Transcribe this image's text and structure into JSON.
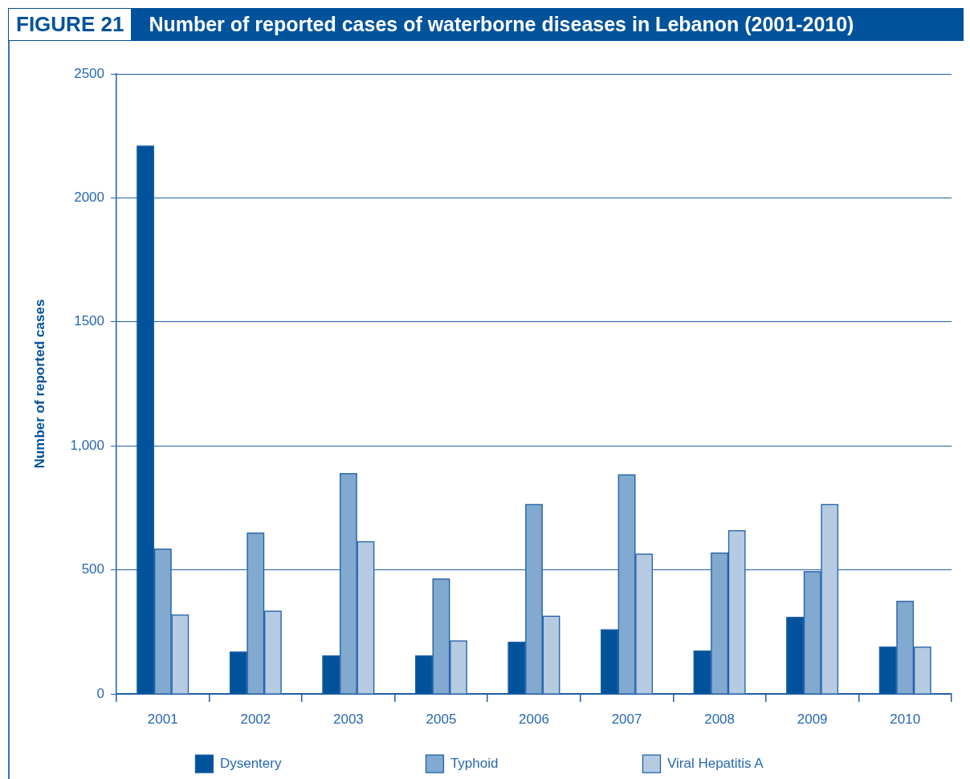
{
  "chart_data": {
    "type": "bar",
    "title": "Number of reported cases of waterborne diseases in Lebanon (2001-2010)",
    "annotations": [
      "FIGURE 21"
    ],
    "ylabel": "Number of reported cases",
    "categories": [
      "2001",
      "2002",
      "2003",
      "2005",
      "2006",
      "2007",
      "2008",
      "2009",
      "2010"
    ],
    "series": [
      {
        "name": "Dysentery",
        "color": "#00529b",
        "values": [
          2210,
          170,
          155,
          155,
          210,
          260,
          175,
          310,
          190
        ]
      },
      {
        "name": "Typhoid",
        "color": "#82a9cf",
        "values": [
          585,
          650,
          890,
          465,
          765,
          885,
          570,
          495,
          375
        ]
      },
      {
        "name": "Viral Hepatitis A",
        "color": "#b4cbe2",
        "values": [
          320,
          335,
          615,
          215,
          315,
          565,
          660,
          765,
          190
        ]
      }
    ],
    "ylim": [
      0,
      2500
    ],
    "yticks": [
      0,
      500,
      {
        "value": 1000,
        "label": "1,000"
      },
      1500,
      2000,
      2500
    ],
    "grid": "y",
    "legend": "bottom"
  }
}
